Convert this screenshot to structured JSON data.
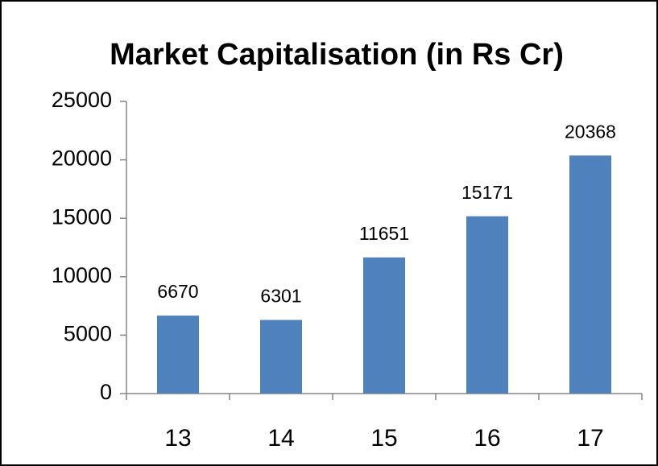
{
  "chart_data": {
    "type": "bar",
    "title": "Market Capitalisation (in Rs Cr)",
    "categories": [
      "13",
      "14",
      "15",
      "16",
      "17"
    ],
    "values": [
      6670,
      6301,
      11651,
      15171,
      20368
    ],
    "color": "#4f81bd",
    "ylim": [
      0,
      25000
    ],
    "yticks": [
      0,
      5000,
      10000,
      15000,
      20000,
      25000
    ],
    "grid": false
  }
}
